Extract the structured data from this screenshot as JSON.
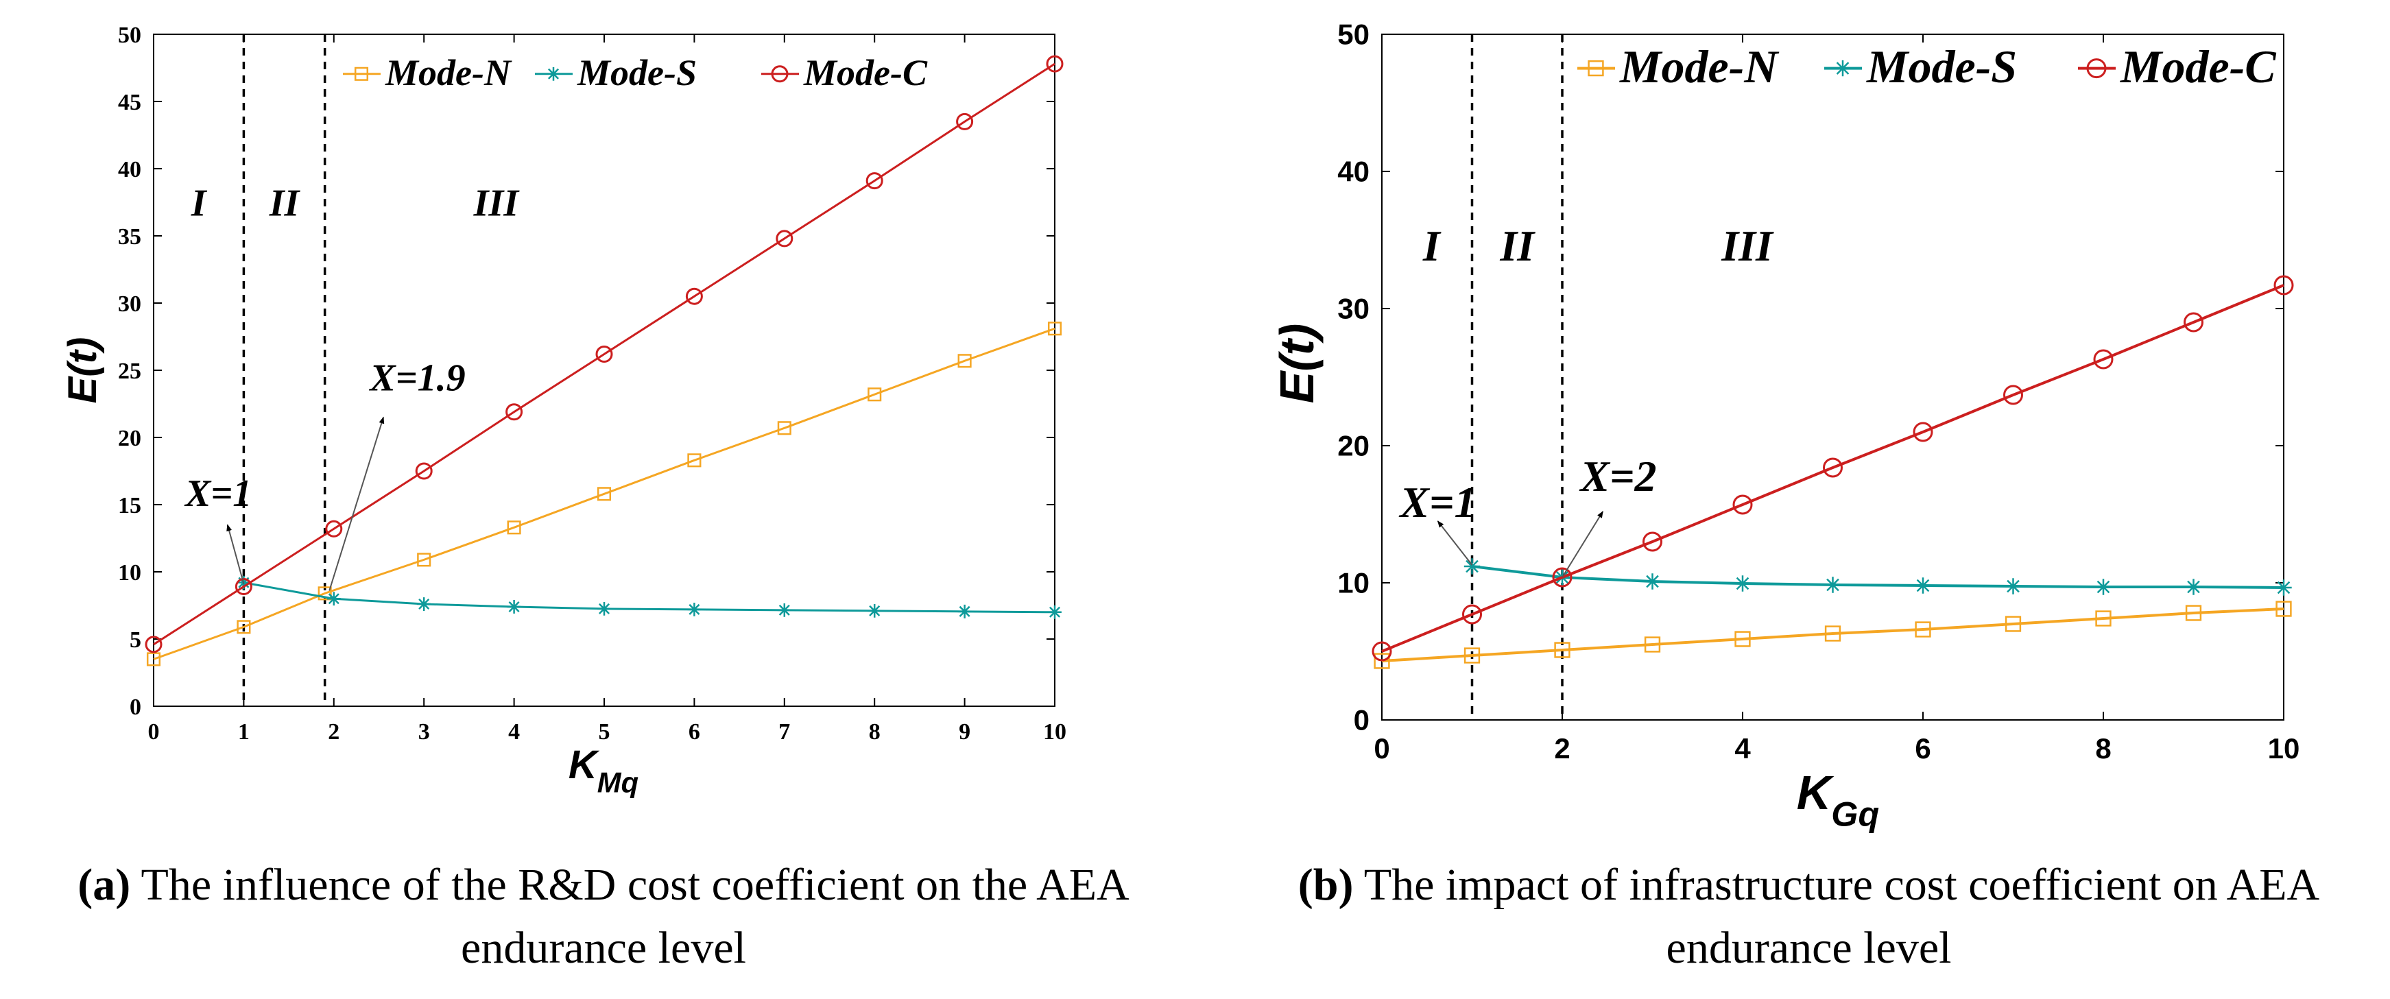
{
  "colors": {
    "mode_n": "#F5A623",
    "mode_s": "#0E9A9A",
    "mode_c": "#CC1F1F",
    "axis": "#000000"
  },
  "chart_data": [
    {
      "type": "line",
      "panel": "a",
      "xlabel": "K",
      "xlabel_sub": "Mq",
      "ylabel": "E(t)",
      "xlim": [
        0,
        10
      ],
      "ylim": [
        0,
        50
      ],
      "xticks": [
        0,
        1,
        2,
        3,
        4,
        5,
        6,
        7,
        8,
        9,
        10
      ],
      "yticks": [
        0,
        5,
        10,
        15,
        20,
        25,
        30,
        35,
        40,
        45,
        50
      ],
      "x": [
        0,
        1,
        2,
        3,
        4,
        5,
        6,
        7,
        8,
        9,
        10
      ],
      "series": [
        {
          "name": "Mode-N",
          "key": "mode_n",
          "marker": "square",
          "x": [
            0,
            1,
            1.9,
            3,
            4,
            5,
            6,
            7,
            8,
            9,
            10
          ],
          "values": [
            3.5,
            5.9,
            8.4,
            10.9,
            13.3,
            15.8,
            18.3,
            20.7,
            23.2,
            25.7,
            28.1
          ]
        },
        {
          "name": "Mode-S",
          "key": "mode_s",
          "marker": "star",
          "x": [
            1,
            2,
            3,
            4,
            5,
            6,
            7,
            8,
            9,
            10
          ],
          "values": [
            9.2,
            8.0,
            7.6,
            7.4,
            7.25,
            7.2,
            7.15,
            7.1,
            7.05,
            7.0
          ]
        },
        {
          "name": "Mode-C",
          "key": "mode_c",
          "marker": "circle",
          "x": [
            0,
            1,
            2,
            3,
            4,
            5,
            6,
            7,
            8,
            9,
            10
          ],
          "values": [
            4.6,
            8.9,
            13.2,
            17.5,
            21.9,
            26.2,
            30.5,
            34.8,
            39.1,
            43.5,
            47.8
          ]
        }
      ],
      "vlines": [
        1,
        1.9
      ],
      "regions": [
        {
          "label": "I",
          "x": 0.5,
          "y": 36.5
        },
        {
          "label": "II",
          "x": 1.45,
          "y": 36.5
        },
        {
          "label": "III",
          "x": 3.8,
          "y": 36.5
        }
      ],
      "annotations": [
        {
          "text": "X=1",
          "tx": 0.35,
          "ty": 14.9,
          "ax": 0.82,
          "ay": 13.5,
          "px": 1,
          "py": 9.1
        },
        {
          "text": "X=1.9",
          "tx": 2.4,
          "ty": 23.5,
          "ax": 2.55,
          "ay": 21.5,
          "px": 1.95,
          "py": 8.6
        }
      ],
      "legend": "top-right",
      "caption_label": "(a)",
      "caption_text": "The influence of the R&D cost coefficient on the AEA endurance level"
    },
    {
      "type": "line",
      "panel": "b",
      "xlabel": "K",
      "xlabel_sub": "Gq",
      "ylabel": "E(t)",
      "xlim": [
        0,
        10
      ],
      "ylim": [
        0,
        50
      ],
      "xticks": [
        0,
        2,
        4,
        6,
        8,
        10
      ],
      "yticks": [
        0,
        10,
        20,
        30,
        40,
        50
      ],
      "x": [
        0,
        1,
        2,
        3,
        4,
        5,
        6,
        7,
        8,
        9,
        10
      ],
      "series": [
        {
          "name": "Mode-N",
          "key": "mode_n",
          "marker": "square",
          "x": [
            0,
            1,
            2,
            3,
            4,
            5,
            6,
            7,
            8,
            9,
            10
          ],
          "values": [
            4.3,
            4.7,
            5.1,
            5.5,
            5.9,
            6.3,
            6.6,
            7.0,
            7.4,
            7.8,
            8.1
          ]
        },
        {
          "name": "Mode-S",
          "key": "mode_s",
          "marker": "star",
          "x": [
            1,
            2,
            3,
            4,
            5,
            6,
            7,
            8,
            9,
            10
          ],
          "values": [
            11.2,
            10.4,
            10.1,
            9.95,
            9.85,
            9.8,
            9.75,
            9.7,
            9.7,
            9.65
          ]
        },
        {
          "name": "Mode-C",
          "key": "mode_c",
          "marker": "circle",
          "x": [
            0,
            1,
            2,
            3,
            4,
            5,
            6,
            7,
            8,
            9,
            10
          ],
          "values": [
            5.0,
            7.7,
            10.4,
            13.0,
            15.7,
            18.4,
            21.0,
            23.7,
            26.3,
            29.0,
            31.7
          ]
        }
      ],
      "vlines": [
        1,
        2
      ],
      "regions": [
        {
          "label": "I",
          "x": 0.55,
          "y": 33.5
        },
        {
          "label": "II",
          "x": 1.5,
          "y": 33.5
        },
        {
          "label": "III",
          "x": 4.05,
          "y": 33.5
        }
      ],
      "annotations": [
        {
          "text": "X=1",
          "tx": 0.2,
          "ty": 14.8,
          "ax": 0.62,
          "ay": 14.5,
          "px": 1,
          "py": 11.3
        },
        {
          "text": "X=2",
          "tx": 2.2,
          "ty": 16.7,
          "ax": 2.45,
          "ay": 15.2,
          "px": 2,
          "py": 10.4
        }
      ],
      "legend": "top-right",
      "caption_label": "(b)",
      "caption_text": "The impact of infrastructure cost coefficient on AEA endurance level"
    }
  ]
}
